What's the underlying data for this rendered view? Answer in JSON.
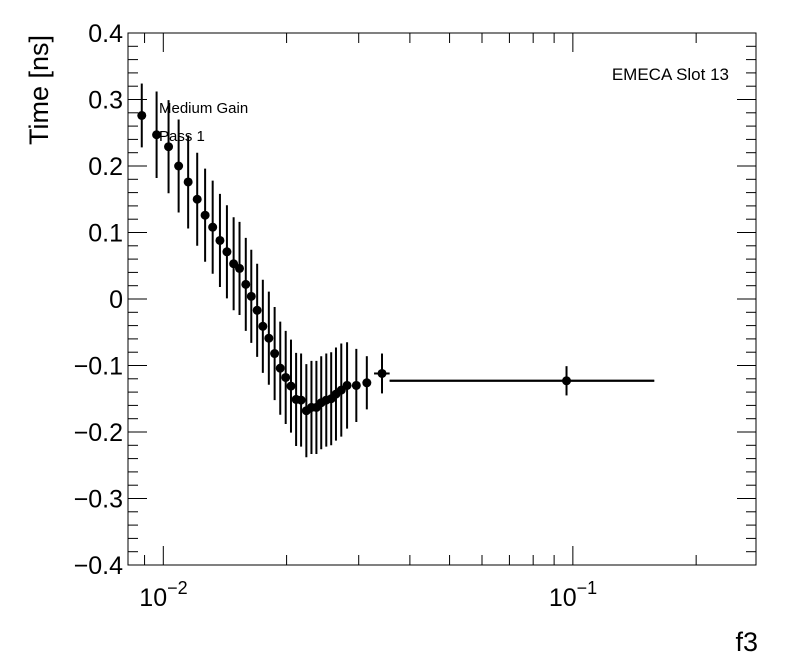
{
  "chart_data": {
    "type": "scatter",
    "ylabel": "Time [ns]",
    "xlabel": "f3",
    "annotation": "EMECA Slot 13",
    "legend": [
      "Medium Gain",
      "Pass 1"
    ],
    "legend_placement": "top-left",
    "xscale": "log",
    "xlim": [
      0.0082,
      0.28
    ],
    "ylim": [
      -0.4,
      0.4
    ],
    "grid": false,
    "yticks": [
      {
        "v": 0.4,
        "label": "0.4"
      },
      {
        "v": 0.3,
        "label": "0.3"
      },
      {
        "v": 0.2,
        "label": "0.2"
      },
      {
        "v": 0.1,
        "label": "0.1"
      },
      {
        "v": 0,
        "label": "0"
      },
      {
        "v": -0.1,
        "label": "−0.1"
      },
      {
        "v": -0.2,
        "label": "−0.2"
      },
      {
        "v": -0.3,
        "label": "−0.3"
      },
      {
        "v": -0.4,
        "label": "−0.4"
      }
    ],
    "xtick_labels": [
      {
        "v": 0.01,
        "base": "10",
        "exp": "−2"
      },
      {
        "v": 0.1,
        "base": "10",
        "exp": "−1"
      }
    ],
    "points": [
      {
        "x": 0.00886,
        "y": 0.276,
        "err": 0.048
      },
      {
        "x": 0.00963,
        "y": 0.247,
        "err": 0.065
      },
      {
        "x": 0.0103,
        "y": 0.229,
        "err": 0.07
      },
      {
        "x": 0.0109,
        "y": 0.2,
        "err": 0.07
      },
      {
        "x": 0.0115,
        "y": 0.176,
        "err": 0.07
      },
      {
        "x": 0.0121,
        "y": 0.15,
        "err": 0.07
      },
      {
        "x": 0.01265,
        "y": 0.126,
        "err": 0.07
      },
      {
        "x": 0.0132,
        "y": 0.108,
        "err": 0.07
      },
      {
        "x": 0.01375,
        "y": 0.088,
        "err": 0.07
      },
      {
        "x": 0.0143,
        "y": 0.071,
        "err": 0.07
      },
      {
        "x": 0.01485,
        "y": 0.053,
        "err": 0.07
      },
      {
        "x": 0.01535,
        "y": 0.046,
        "err": 0.07
      },
      {
        "x": 0.0159,
        "y": 0.022,
        "err": 0.07
      },
      {
        "x": 0.0164,
        "y": 0.004,
        "err": 0.07
      },
      {
        "x": 0.01695,
        "y": -0.017,
        "err": 0.07
      },
      {
        "x": 0.0175,
        "y": -0.041,
        "err": 0.07
      },
      {
        "x": 0.0181,
        "y": -0.059,
        "err": 0.07
      },
      {
        "x": 0.0187,
        "y": -0.082,
        "err": 0.07
      },
      {
        "x": 0.0193,
        "y": -0.104,
        "err": 0.07
      },
      {
        "x": 0.0199,
        "y": -0.118,
        "err": 0.07
      },
      {
        "x": 0.0205,
        "y": -0.131,
        "err": 0.07
      },
      {
        "x": 0.0211,
        "y": -0.151,
        "err": 0.07
      },
      {
        "x": 0.0217,
        "y": -0.152,
        "err": 0.07
      },
      {
        "x": 0.02235,
        "y": -0.168,
        "err": 0.07
      },
      {
        "x": 0.023,
        "y": -0.163,
        "err": 0.07
      },
      {
        "x": 0.02365,
        "y": -0.163,
        "err": 0.07
      },
      {
        "x": 0.0243,
        "y": -0.156,
        "err": 0.07
      },
      {
        "x": 0.025,
        "y": -0.152,
        "err": 0.07
      },
      {
        "x": 0.0257,
        "y": -0.15,
        "err": 0.07
      },
      {
        "x": 0.0264,
        "y": -0.143,
        "err": 0.07
      },
      {
        "x": 0.0272,
        "y": -0.137,
        "err": 0.07
      },
      {
        "x": 0.0281,
        "y": -0.13,
        "err": 0.065
      },
      {
        "x": 0.0296,
        "y": -0.13,
        "err": 0.055
      },
      {
        "x": 0.0314,
        "y": -0.126,
        "err": 0.04
      },
      {
        "x": 0.0342,
        "y": -0.112,
        "err": 0.03,
        "xlo": 0.0327,
        "xhi": 0.0357
      },
      {
        "x": 0.0965,
        "y": -0.123,
        "err": 0.022,
        "xlo": 0.0357,
        "xhi": 0.158
      }
    ],
    "reference_line": {
      "y": -0.123,
      "from": 0.0357,
      "to": 0.158
    }
  }
}
